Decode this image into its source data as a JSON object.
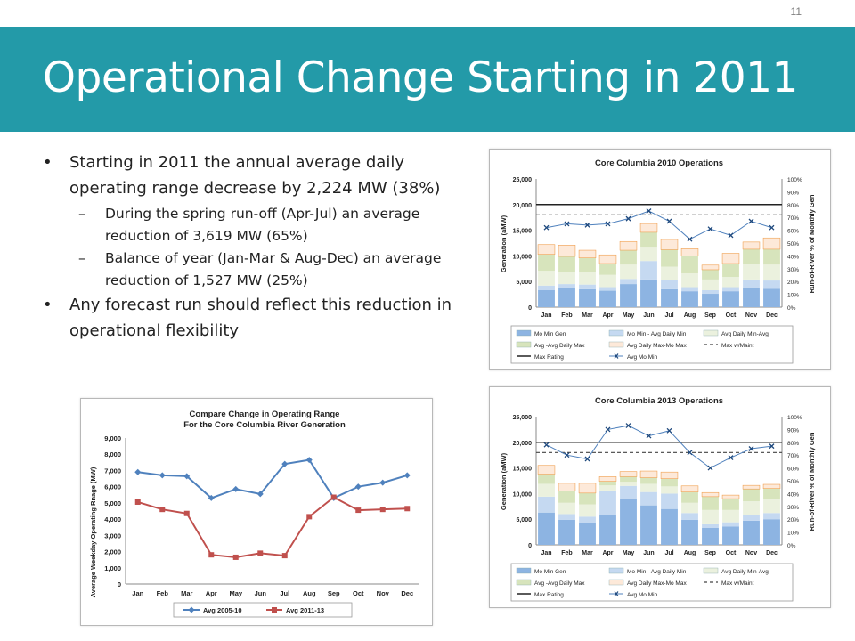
{
  "slide": {
    "number": "11",
    "title": "Operational Change Starting in 2011",
    "bullets": {
      "b1": "Starting in 2011 the annual average daily operating range decrease by 2,224 MW (38%)",
      "b1_sub1": "During the spring run-off (Apr-Jul) an average reduction of 3,619 MW (65%)",
      "b1_sub2": "Balance of year (Jan-Mar & Aug-Dec) an average reduction of 1,527 MW (25%)",
      "b2": "Any forecast run should reflect this reduction in operational flexibility"
    }
  },
  "chart_data": [
    {
      "type": "line",
      "title": "Compare Change in Operating Range",
      "subtitle": "For the Core Columbia River Generation",
      "ylabel": "Average Weekday Operating Rnage (MW)",
      "ylim": [
        0,
        9000
      ],
      "yticks": [
        "0",
        "1,000",
        "2,000",
        "3,000",
        "4,000",
        "5,000",
        "6,000",
        "7,000",
        "8,000",
        "9,000"
      ],
      "categories": [
        "Jan",
        "Feb",
        "Mar",
        "Apr",
        "May",
        "Jun",
        "Jul",
        "Aug",
        "Sep",
        "Oct",
        "Nov",
        "Dec"
      ],
      "series": [
        {
          "name": "Avg 2005-10",
          "color": "#4f81bd",
          "values": [
            6900,
            6700,
            6650,
            5300,
            5850,
            5550,
            7400,
            7650,
            5300,
            6000,
            6250,
            6700
          ]
        },
        {
          "name": "Avg 2011-13",
          "color": "#c0504d",
          "values": [
            5050,
            4600,
            4350,
            1800,
            1650,
            1900,
            1750,
            4150,
            5350,
            4550,
            4600,
            4650
          ]
        }
      ],
      "legend_position": "bottom"
    },
    {
      "type": "bar",
      "title": "Core Columbia 2010 Operations",
      "ylabel": "Generation (aMW)",
      "y2label": "Run-of-River % of Monthly Gen",
      "ylim": [
        0,
        25000
      ],
      "yticks": [
        "0",
        "5,000",
        "10,000",
        "15,000",
        "20,000",
        "25,000"
      ],
      "y2ticks": [
        "0%",
        "10%",
        "20%",
        "30%",
        "40%",
        "50%",
        "60%",
        "70%",
        "80%",
        "90%",
        "100%"
      ],
      "categories": [
        "Jan",
        "Feb",
        "Mar",
        "Apr",
        "May",
        "Jun",
        "Jul",
        "Aug",
        "Sep",
        "Oct",
        "Nov",
        "Dec"
      ],
      "stacked_series": [
        {
          "name": "Mo Min Gen",
          "color": "#8db4e2",
          "values": [
            3300,
            3700,
            3500,
            3200,
            4500,
            5400,
            3500,
            3100,
            2600,
            3100,
            3700,
            3600
          ]
        },
        {
          "name": "Mo Min - Avg Daily Min",
          "color": "#c5d9f1",
          "values": [
            900,
            800,
            900,
            700,
            1000,
            3600,
            1800,
            800,
            700,
            800,
            1700,
            1600
          ]
        },
        {
          "name": "Avg Daily Min-Avg",
          "color": "#ebf1de",
          "values": [
            2900,
            2300,
            2400,
            2400,
            2800,
            2600,
            2600,
            2700,
            2100,
            2000,
            3100,
            3100
          ]
        },
        {
          "name": "Avg - Avg Daily Max",
          "color": "#d7e4bc",
          "values": [
            3200,
            3100,
            2800,
            2200,
            2800,
            3000,
            3300,
            3400,
            1900,
            2600,
            2800,
            3000
          ]
        },
        {
          "name": "Avg Daily Max-Mo Max",
          "color": "#fde9d9",
          "values": [
            1900,
            2200,
            1500,
            1700,
            1700,
            1700,
            2000,
            1400,
            900,
            2000,
            1400,
            2200
          ]
        }
      ],
      "max_rating": 20000,
      "max_w_maint": 18000,
      "line_series": {
        "name": "Avg Mo Min",
        "color": "#4f81bd",
        "axis": "right",
        "values": [
          62,
          65,
          64,
          65,
          69,
          75,
          67,
          53,
          61,
          56,
          67,
          62
        ]
      },
      "legend": [
        "Mo Min Gen",
        "Mo Min - Avg Daily Min",
        "Avg Daily Min-Avg",
        "Avg -Avg Daily Max",
        "Avg Daily Max-Mo Max",
        "Max w/Maint",
        "Max Rating",
        "Avg Mo Min"
      ]
    },
    {
      "type": "bar",
      "title": "Core Columbia 2013 Operations",
      "ylabel": "Generation (aMW)",
      "y2label": "Run-of-River % of Monthly Gen",
      "ylim": [
        0,
        25000
      ],
      "yticks": [
        "0",
        "5,000",
        "10,000",
        "15,000",
        "20,000",
        "25,000"
      ],
      "y2ticks": [
        "0%",
        "10%",
        "20%",
        "30%",
        "40%",
        "50%",
        "60%",
        "70%",
        "80%",
        "90%",
        "100%"
      ],
      "categories": [
        "Jan",
        "Feb",
        "Mar",
        "Apr",
        "May",
        "Jun",
        "Jul",
        "Aug",
        "Sep",
        "Oct",
        "Nov",
        "Dec"
      ],
      "stacked_series": [
        {
          "name": "Mo Min Gen",
          "color": "#8db4e2",
          "values": [
            6300,
            4900,
            4300,
            5900,
            9000,
            7700,
            7000,
            4900,
            3300,
            3600,
            4700,
            5000
          ]
        },
        {
          "name": "Mo Min - Avg Daily Min",
          "color": "#c5d9f1",
          "values": [
            3100,
            1100,
            1200,
            4700,
            2500,
            2600,
            3000,
            1300,
            700,
            800,
            1200,
            1200
          ]
        },
        {
          "name": "Avg Daily Min-Avg",
          "color": "#ebf1de",
          "values": [
            2500,
            2200,
            2400,
            1000,
            800,
            1600,
            1400,
            2000,
            2800,
            2400,
            2600,
            2700
          ]
        },
        {
          "name": "Avg - Avg Daily Max",
          "color": "#d7e4bc",
          "values": [
            1900,
            2300,
            2200,
            800,
            1000,
            1200,
            1500,
            2100,
            2600,
            2200,
            2400,
            2100
          ]
        },
        {
          "name": "Avg Daily Max-Mo Max",
          "color": "#fde9d9",
          "values": [
            1700,
            1500,
            1900,
            900,
            1000,
            1300,
            1300,
            1200,
            800,
            700,
            700,
            800
          ]
        }
      ],
      "max_rating": 20000,
      "max_w_maint": 18000,
      "line_series": {
        "name": "Avg Mo Min",
        "color": "#4f81bd",
        "axis": "right",
        "values": [
          78,
          70,
          67,
          90,
          93,
          85,
          89,
          72,
          60,
          68,
          75,
          77
        ]
      },
      "legend": [
        "Mo Min Gen",
        "Mo Min - Avg Daily Min",
        "Avg Daily Min-Avg",
        "Avg -Avg Daily Max",
        "Avg Daily Max-Mo Max",
        "Max w/Maint",
        "Max Rating",
        "Avg Mo Min"
      ]
    }
  ]
}
